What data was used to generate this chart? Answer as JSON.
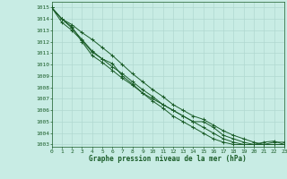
{
  "title": "Graphe pression niveau de la mer (hPa)",
  "background_color": "#c8ece4",
  "grid_color": "#b0d8d0",
  "line_color": "#1a5c28",
  "xlim": [
    0,
    23
  ],
  "ylim": [
    1002.8,
    1015.5
  ],
  "xticks": [
    0,
    1,
    2,
    3,
    4,
    5,
    6,
    7,
    8,
    9,
    10,
    11,
    12,
    13,
    14,
    15,
    16,
    17,
    18,
    19,
    20,
    21,
    22,
    23
  ],
  "yticks": [
    1003,
    1004,
    1005,
    1006,
    1007,
    1008,
    1009,
    1010,
    1011,
    1012,
    1013,
    1014,
    1015
  ],
  "series": [
    [
      1015,
      1013.7,
      1013.0,
      1012.1,
      1011.1,
      1010.5,
      1010.1,
      1009.0,
      1008.3,
      1007.5,
      1007.0,
      1006.5,
      1006.0,
      1005.5,
      1005.0,
      1005.0,
      1004.5,
      1003.8,
      1003.5,
      1003.2,
      1003.0,
      1003.0,
      1003.2,
      1003.2
    ],
    [
      1015,
      1014.0,
      1013.5,
      1012.8,
      1012.2,
      1011.5,
      1010.8,
      1010.0,
      1009.2,
      1008.5,
      1007.8,
      1007.2,
      1006.5,
      1006.0,
      1005.5,
      1005.2,
      1004.7,
      1004.2,
      1003.8,
      1003.5,
      1003.2,
      1003.0,
      1003.0,
      1003.0
    ],
    [
      1015,
      1014.0,
      1013.2,
      1012.2,
      1011.2,
      1010.5,
      1009.8,
      1009.2,
      1008.5,
      1007.8,
      1007.2,
      1006.5,
      1006.0,
      1005.5,
      1005.0,
      1004.5,
      1004.0,
      1003.5,
      1003.2,
      1003.0,
      1003.0,
      1003.0,
      1003.0,
      1003.0
    ],
    [
      1015,
      1014.0,
      1013.3,
      1012.0,
      1010.8,
      1010.2,
      1009.5,
      1008.8,
      1008.2,
      1007.5,
      1006.8,
      1006.2,
      1005.5,
      1005.0,
      1004.5,
      1004.0,
      1003.5,
      1003.2,
      1003.0,
      1003.0,
      1003.0,
      1003.2,
      1003.3,
      1003.0
    ]
  ]
}
